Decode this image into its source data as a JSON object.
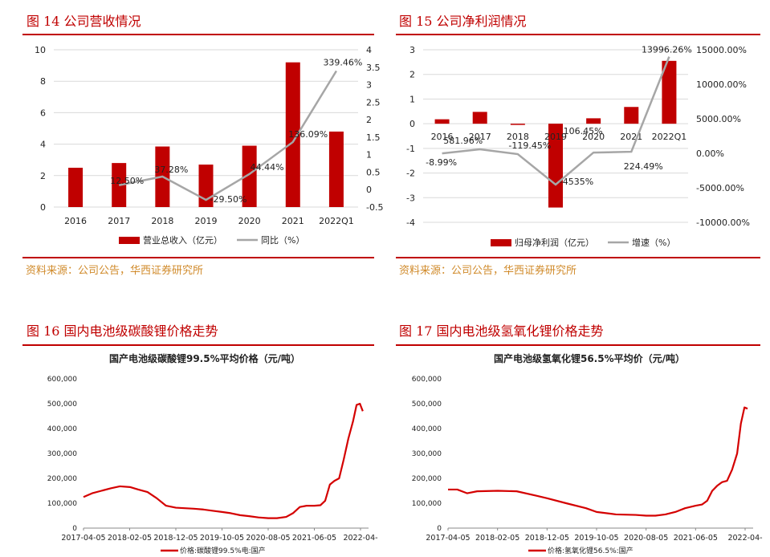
{
  "panels": [
    {
      "title": "图 14 公司营收情况",
      "source": "资料来源：公司公告，华西证券研究所"
    },
    {
      "title": "图 15 公司净利润情况",
      "source": "资料来源：公司公告，华西证券研究所"
    },
    {
      "title": "图 16 国内电池级碳酸锂价格走势",
      "source": ""
    },
    {
      "title": "图 17 国内电池级氢氧化锂价格走势",
      "source": ""
    }
  ],
  "colors": {
    "bar": "#c00000",
    "line": "#a6a6a6",
    "price": "#d40000",
    "title": "#c00000"
  },
  "chart_data": [
    {
      "type": "bar+line",
      "categories": [
        "2016",
        "2017",
        "2018",
        "2019",
        "2020",
        "2021",
        "2022Q1"
      ],
      "series": [
        {
          "name": "营业总收入（亿元）",
          "type": "bar",
          "axis": "left",
          "values": [
            2.5,
            2.8,
            3.85,
            2.7,
            3.9,
            9.2,
            4.8
          ]
        },
        {
          "name": "同比（%）",
          "type": "line",
          "axis": "right",
          "values": [
            null,
            0.125,
            0.3728,
            -0.295,
            0.4444,
            1.3609,
            3.3946
          ],
          "labels": [
            "",
            "12.50%",
            "37.28%",
            "-29.50%",
            "44.44%",
            "136.09%",
            "339.46%"
          ]
        }
      ],
      "ylim": [
        0,
        10
      ],
      "yticks": [
        "0",
        "2",
        "4",
        "6",
        "8",
        "10"
      ],
      "y2lim": [
        -0.5,
        4
      ],
      "y2ticks": [
        "-0.5",
        "0",
        "0.5",
        "1",
        "1.5",
        "2",
        "2.5",
        "3",
        "3.5",
        "4"
      ],
      "legend": "bottom"
    },
    {
      "type": "bar+line",
      "categories": [
        "2016",
        "2017",
        "2018",
        "2019",
        "2020",
        "2021",
        "2022Q1"
      ],
      "series": [
        {
          "name": "归母净利润（亿元）",
          "type": "bar",
          "axis": "left",
          "values": [
            0.18,
            0.48,
            -0.04,
            -3.4,
            0.22,
            0.68,
            2.55
          ]
        },
        {
          "name": "增速（%）",
          "type": "line",
          "axis": "right",
          "values": [
            -8.99,
            581.96,
            -119.45,
            -4535,
            106.45,
            224.49,
            13996.26
          ],
          "labels": [
            "-8.99%",
            "581.96%",
            "-119.45%",
            "-4535%",
            "106.45%",
            "224.49%",
            "13996.26%"
          ]
        }
      ],
      "ylim": [
        -4,
        3
      ],
      "yticks": [
        "-4",
        "-3",
        "-2",
        "-1",
        "0",
        "1",
        "2",
        "3"
      ],
      "y2lim": [
        -10000,
        15000
      ],
      "y2ticks": [
        "-10000.00%",
        "-5000.00%",
        "0.00%",
        "5000.00%",
        "10000.00%",
        "15000.00%"
      ],
      "legend": "bottom"
    },
    {
      "type": "line",
      "title": "国产电池级碳酸锂99.5%平均价格（元/吨）",
      "xticks": [
        "2017-04-05",
        "2018-02-05",
        "2018-12-05",
        "2019-10-05",
        "2020-08-05",
        "2021-06-05",
        "2022-04-"
      ],
      "ylim": [
        0,
        600000
      ],
      "yticks": [
        "0",
        "100,000",
        "200,000",
        "300,000",
        "400,000",
        "500,000",
        "600,000"
      ],
      "series": [
        {
          "name": "价格:碳酸锂99.5%电:国产",
          "x": [
            "2017-04-05",
            "2017-06-01",
            "2017-08-01",
            "2017-10-01",
            "2017-12-01",
            "2018-02-05",
            "2018-04-01",
            "2018-06-01",
            "2018-08-01",
            "2018-10-01",
            "2018-12-05",
            "2019-02-01",
            "2019-04-01",
            "2019-06-01",
            "2019-08-01",
            "2019-10-05",
            "2019-12-01",
            "2020-02-01",
            "2020-04-01",
            "2020-06-01",
            "2020-08-05",
            "2020-10-01",
            "2020-12-01",
            "2021-01-15",
            "2021-03-01",
            "2021-04-15",
            "2021-06-05",
            "2021-07-15",
            "2021-08-15",
            "2021-09-15",
            "2021-10-15",
            "2021-11-15",
            "2021-12-15",
            "2022-01-15",
            "2022-02-15",
            "2022-03-10",
            "2022-04-01",
            "2022-04-20"
          ],
          "values": [
            125000,
            140000,
            150000,
            160000,
            168000,
            165000,
            155000,
            145000,
            120000,
            90000,
            82000,
            80000,
            78000,
            75000,
            70000,
            65000,
            60000,
            52000,
            48000,
            43000,
            40000,
            40000,
            45000,
            60000,
            85000,
            90000,
            90000,
            92000,
            110000,
            175000,
            190000,
            200000,
            275000,
            360000,
            430000,
            495000,
            500000,
            470000
          ]
        }
      ],
      "legend": "bottom"
    },
    {
      "type": "line",
      "title": "国产电池级氢氧化锂56.5%平均价（元/吨）",
      "xticks": [
        "2017-04-05",
        "2018-02-05",
        "2018-12-05",
        "2019-10-05",
        "2020-08-05",
        "2021-06-05",
        "2022-04-"
      ],
      "ylim": [
        0,
        600000
      ],
      "yticks": [
        "0",
        "100,000",
        "200,000",
        "300,000",
        "400,000",
        "500,000",
        "600,000"
      ],
      "series": [
        {
          "name": "价格:氢氧化锂56.5%:国产",
          "x": [
            "2017-04-05",
            "2017-06-01",
            "2017-08-01",
            "2017-10-01",
            "2018-02-05",
            "2018-06-01",
            "2018-10-01",
            "2018-12-05",
            "2019-04-01",
            "2019-08-01",
            "2019-10-05",
            "2020-02-01",
            "2020-06-01",
            "2020-08-05",
            "2020-10-01",
            "2020-12-01",
            "2021-02-01",
            "2021-04-01",
            "2021-06-05",
            "2021-07-15",
            "2021-08-15",
            "2021-09-15",
            "2021-10-15",
            "2021-11-15",
            "2021-12-15",
            "2022-01-15",
            "2022-02-15",
            "2022-03-10",
            "2022-04-01",
            "2022-04-20"
          ],
          "values": [
            155000,
            155000,
            140000,
            148000,
            150000,
            148000,
            130000,
            120000,
            100000,
            80000,
            65000,
            55000,
            53000,
            50000,
            50000,
            55000,
            65000,
            80000,
            90000,
            95000,
            110000,
            150000,
            170000,
            185000,
            190000,
            235000,
            300000,
            420000,
            485000,
            480000
          ]
        }
      ],
      "legend": "bottom"
    }
  ]
}
